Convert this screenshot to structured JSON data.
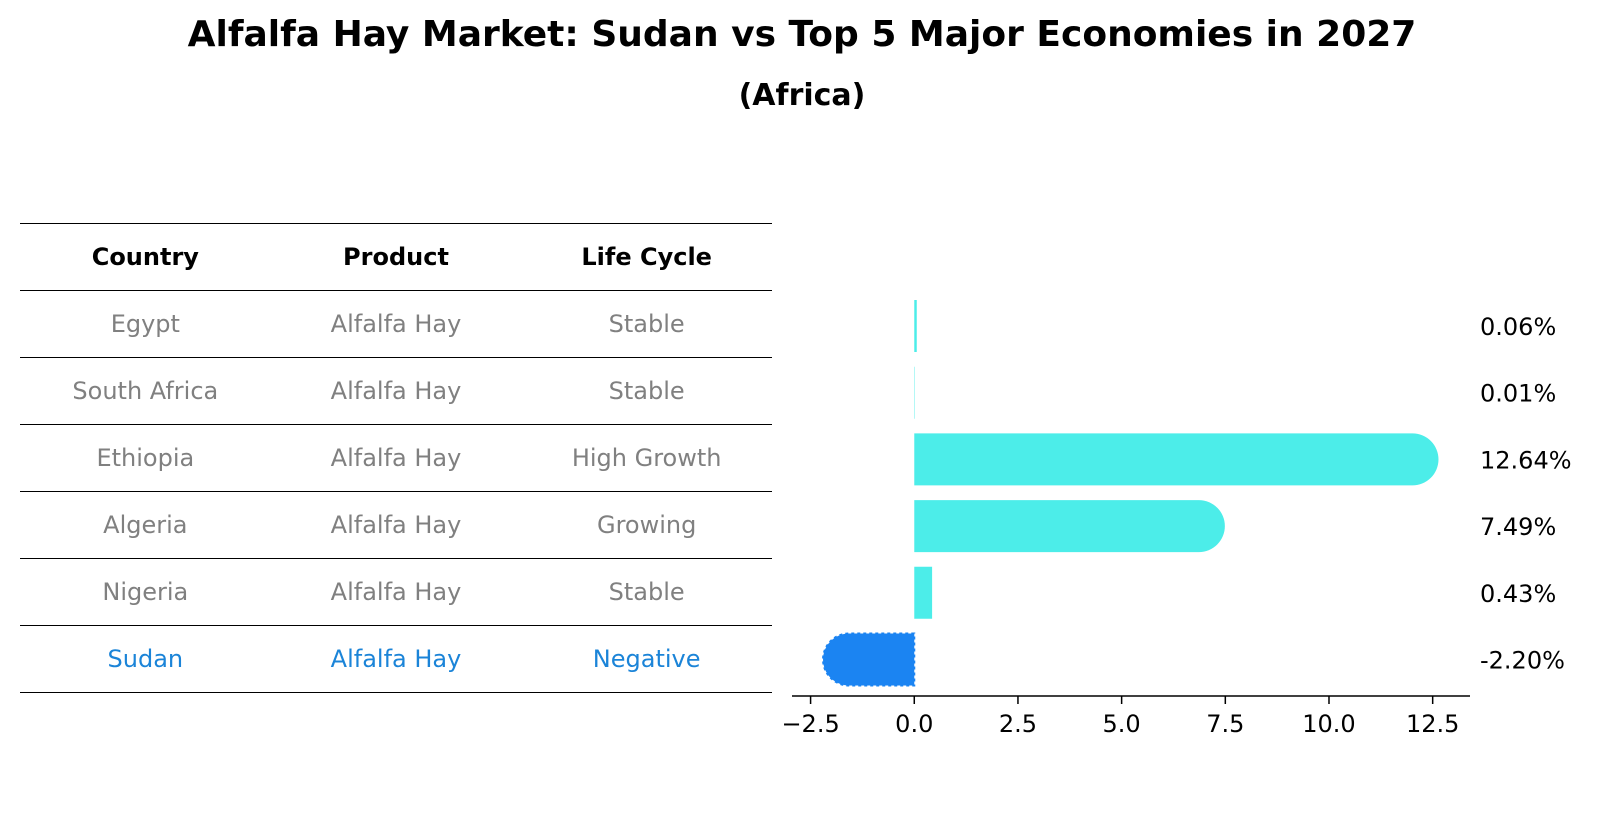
{
  "title": "Alfalfa Hay Market: Sudan vs Top 5 Major Economies in 2027",
  "subtitle": "(Africa)",
  "table": {
    "headers": [
      "Country",
      "Product",
      "Life Cycle"
    ],
    "rows": [
      {
        "country": "Egypt",
        "product": "Alfalfa Hay",
        "life_cycle": "Stable"
      },
      {
        "country": "South Africa",
        "product": "Alfalfa Hay",
        "life_cycle": "Stable"
      },
      {
        "country": "Ethiopia",
        "product": "Alfalfa Hay",
        "life_cycle": "High Growth"
      },
      {
        "country": "Algeria",
        "product": "Alfalfa Hay",
        "life_cycle": "Growing"
      },
      {
        "country": "Nigeria",
        "product": "Alfalfa Hay",
        "life_cycle": "Stable"
      },
      {
        "country": "Sudan",
        "product": "Alfalfa Hay",
        "life_cycle": "Negative"
      }
    ]
  },
  "colors": {
    "positive": "#4cede9",
    "highlight": "#1b84f2",
    "highlight_text": "#1b84d8"
  },
  "chart_data": {
    "type": "bar",
    "orientation": "horizontal",
    "categories": [
      "Egypt",
      "South Africa",
      "Ethiopia",
      "Algeria",
      "Nigeria",
      "Sudan"
    ],
    "values": [
      0.06,
      0.01,
      12.64,
      7.49,
      0.43,
      -2.2
    ],
    "value_labels": [
      "0.06%",
      "0.01%",
      "12.64%",
      "7.49%",
      "0.43%",
      "-2.20%"
    ],
    "xlim": [
      -2.9,
      13.4
    ],
    "xticks": [
      -2.5,
      0.0,
      2.5,
      5.0,
      7.5,
      10.0,
      12.5
    ],
    "xtick_labels": [
      "−2.5",
      "0.0",
      "2.5",
      "5.0",
      "7.5",
      "10.0",
      "12.5"
    ],
    "highlight": "Sudan",
    "xlabel": "",
    "ylabel": ""
  }
}
